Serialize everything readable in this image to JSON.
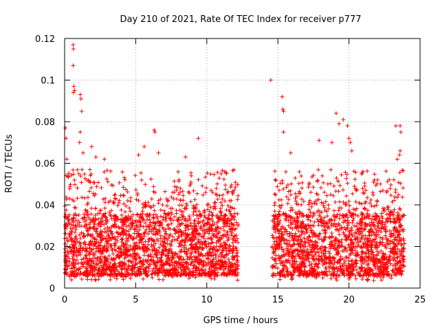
{
  "chart_data": {
    "type": "scatter",
    "title": "Day 210 of 2021, Rate Of TEC Index for receiver p777",
    "xlabel": "GPS time / hours",
    "ylabel": "ROTI / TECUs",
    "xlim": [
      0,
      25
    ],
    "ylim": [
      0,
      0.12
    ],
    "xticks": [
      "0",
      "5",
      "10",
      "15",
      "20",
      "25"
    ],
    "yticks": [
      "0",
      "0.02",
      "0.04",
      "0.06",
      "0.08",
      "0.1",
      "0.12"
    ],
    "grid": true,
    "marker": "+",
    "color": "#ff0000",
    "series": [
      {
        "name": "ROTI",
        "segments": [
          {
            "x_range": [
              0.0,
              12.2
            ],
            "typical_range": [
              0.006,
              0.035
            ]
          },
          {
            "x_range": [
              14.6,
              23.9
            ],
            "typical_range": [
              0.006,
              0.035
            ]
          }
        ],
        "gap": [
          12.2,
          14.6
        ],
        "peaks": [
          {
            "x": 0.05,
            "y": 0.077
          },
          {
            "x": 0.1,
            "y": 0.072
          },
          {
            "x": 0.15,
            "y": 0.062
          },
          {
            "x": 0.6,
            "y": 0.117
          },
          {
            "x": 0.62,
            "y": 0.115
          },
          {
            "x": 0.6,
            "y": 0.107
          },
          {
            "x": 0.65,
            "y": 0.097
          },
          {
            "x": 0.62,
            "y": 0.094
          },
          {
            "x": 0.7,
            "y": 0.095
          },
          {
            "x": 1.1,
            "y": 0.093
          },
          {
            "x": 1.15,
            "y": 0.091
          },
          {
            "x": 1.2,
            "y": 0.085
          },
          {
            "x": 1.1,
            "y": 0.075
          },
          {
            "x": 1.05,
            "y": 0.07
          },
          {
            "x": 1.3,
            "y": 0.065
          },
          {
            "x": 1.9,
            "y": 0.068
          },
          {
            "x": 2.2,
            "y": 0.063
          },
          {
            "x": 2.8,
            "y": 0.062
          },
          {
            "x": 5.2,
            "y": 0.064
          },
          {
            "x": 5.6,
            "y": 0.068
          },
          {
            "x": 6.3,
            "y": 0.076
          },
          {
            "x": 6.35,
            "y": 0.075
          },
          {
            "x": 6.6,
            "y": 0.065
          },
          {
            "x": 8.5,
            "y": 0.063
          },
          {
            "x": 9.4,
            "y": 0.072
          },
          {
            "x": 14.5,
            "y": 0.1
          },
          {
            "x": 15.3,
            "y": 0.092
          },
          {
            "x": 15.35,
            "y": 0.086
          },
          {
            "x": 15.4,
            "y": 0.085
          },
          {
            "x": 15.4,
            "y": 0.075
          },
          {
            "x": 15.9,
            "y": 0.065
          },
          {
            "x": 17.9,
            "y": 0.071
          },
          {
            "x": 18.8,
            "y": 0.07
          },
          {
            "x": 19.1,
            "y": 0.084
          },
          {
            "x": 19.3,
            "y": 0.079
          },
          {
            "x": 19.6,
            "y": 0.081
          },
          {
            "x": 19.9,
            "y": 0.078
          },
          {
            "x": 20.0,
            "y": 0.072
          },
          {
            "x": 20.1,
            "y": 0.07
          },
          {
            "x": 20.2,
            "y": 0.066
          },
          {
            "x": 23.3,
            "y": 0.078
          },
          {
            "x": 23.6,
            "y": 0.078
          },
          {
            "x": 23.65,
            "y": 0.075
          },
          {
            "x": 23.6,
            "y": 0.066
          },
          {
            "x": 23.55,
            "y": 0.064
          },
          {
            "x": 23.4,
            "y": 0.062
          }
        ]
      }
    ]
  }
}
